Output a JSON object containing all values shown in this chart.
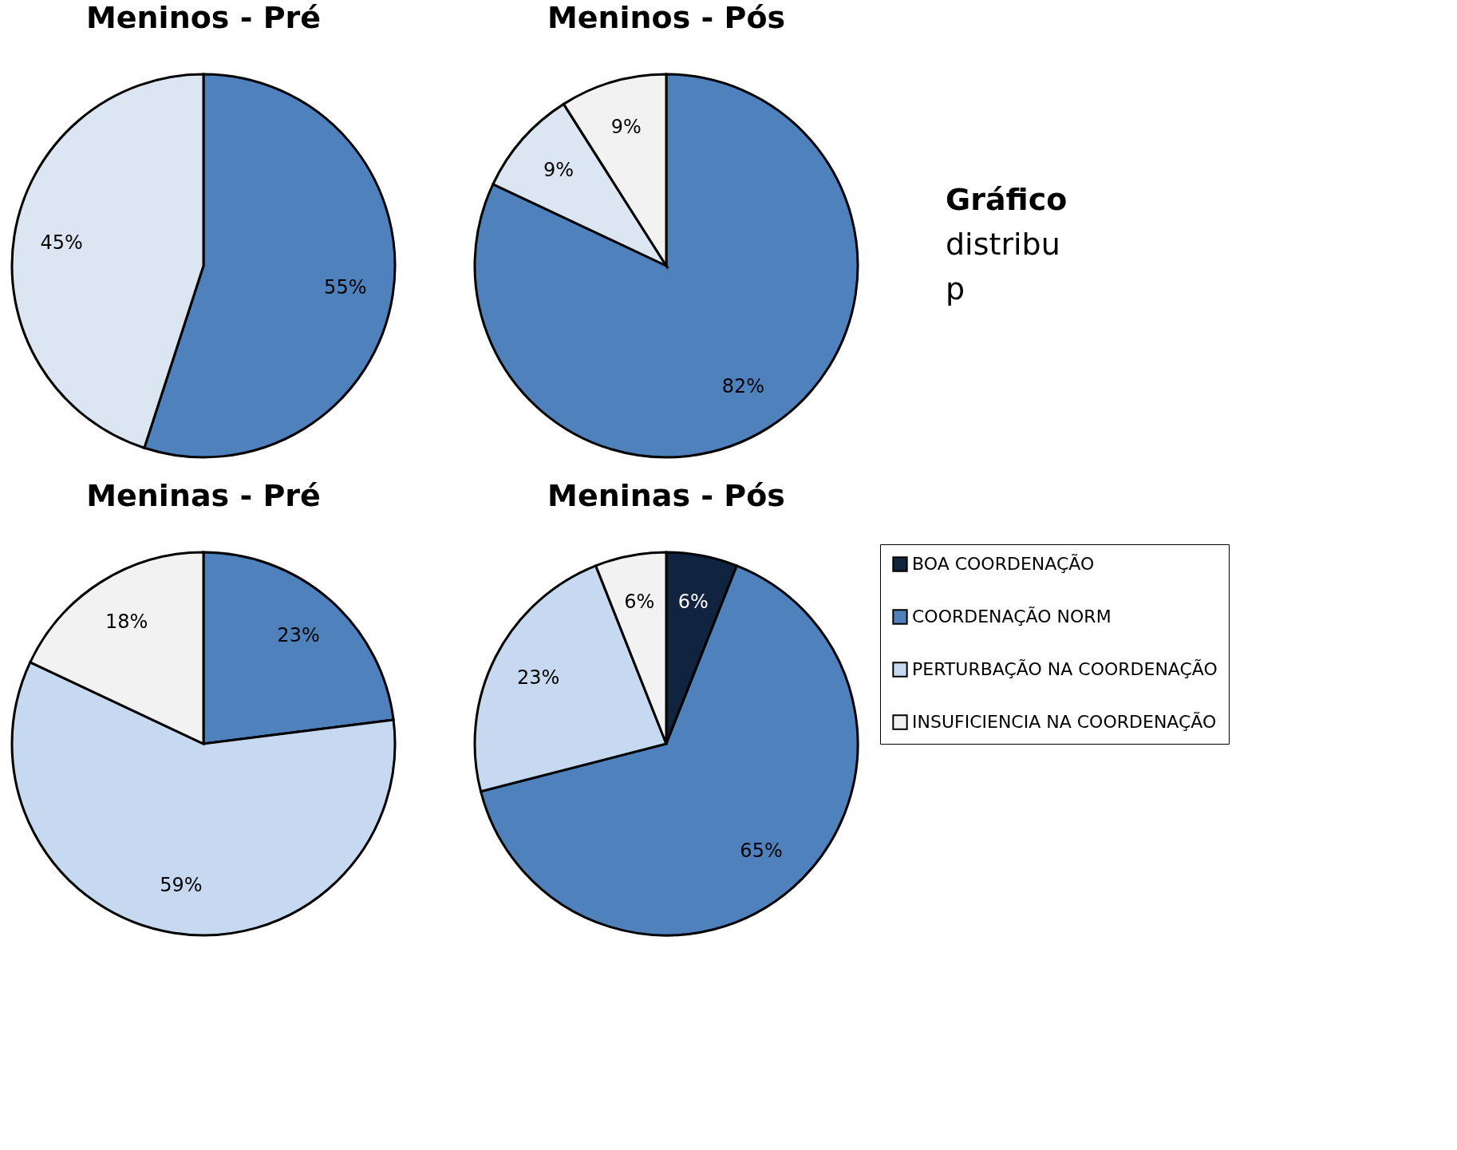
{
  "chart_data": [
    {
      "type": "pie",
      "title": "Meninos - Pré",
      "categories": [
        null,
        null
      ],
      "values": [
        55,
        45
      ],
      "colors": [
        "#4f81bd",
        "#dce6f2"
      ],
      "value_labels": [
        "55%",
        "45%"
      ]
    },
    {
      "type": "pie",
      "title": "Meninos - Pós",
      "categories": [
        null,
        null,
        null
      ],
      "values": [
        82,
        9,
        9
      ],
      "colors": [
        "#4f81bd",
        "#dce6f2",
        "#f2f2f2"
      ],
      "value_labels": [
        "82%",
        "9%",
        "9%"
      ]
    },
    {
      "type": "other",
      "title": "Gráfico",
      "annotations": [
        "distribu",
        "p"
      ]
    },
    {
      "type": "pie",
      "title": "Meninas - Pré",
      "categories": [
        null,
        null,
        null
      ],
      "values": [
        23,
        59,
        18
      ],
      "colors": [
        "#4f81bd",
        "#c6d9f1",
        "#f2f2f2"
      ],
      "value_labels": [
        "23%",
        "59%",
        "18%"
      ]
    },
    {
      "type": "pie",
      "title": "Meninas - Pós",
      "categories": [
        "BOA COORDENAÇÃO",
        "COORDENAÇÃO NORM",
        "PERTURBAÇÃO NA COORDENAÇÃO",
        "INSUFICIENCIA NA COORDENAÇÃO"
      ],
      "values": [
        6,
        65,
        23,
        6
      ],
      "colors": [
        "#10243f",
        "#4f81bd",
        "#c6d9f1",
        "#f2f2f2"
      ],
      "value_labels": [
        "6%",
        "65%",
        "23%",
        "6%"
      ],
      "legend": "right"
    }
  ]
}
